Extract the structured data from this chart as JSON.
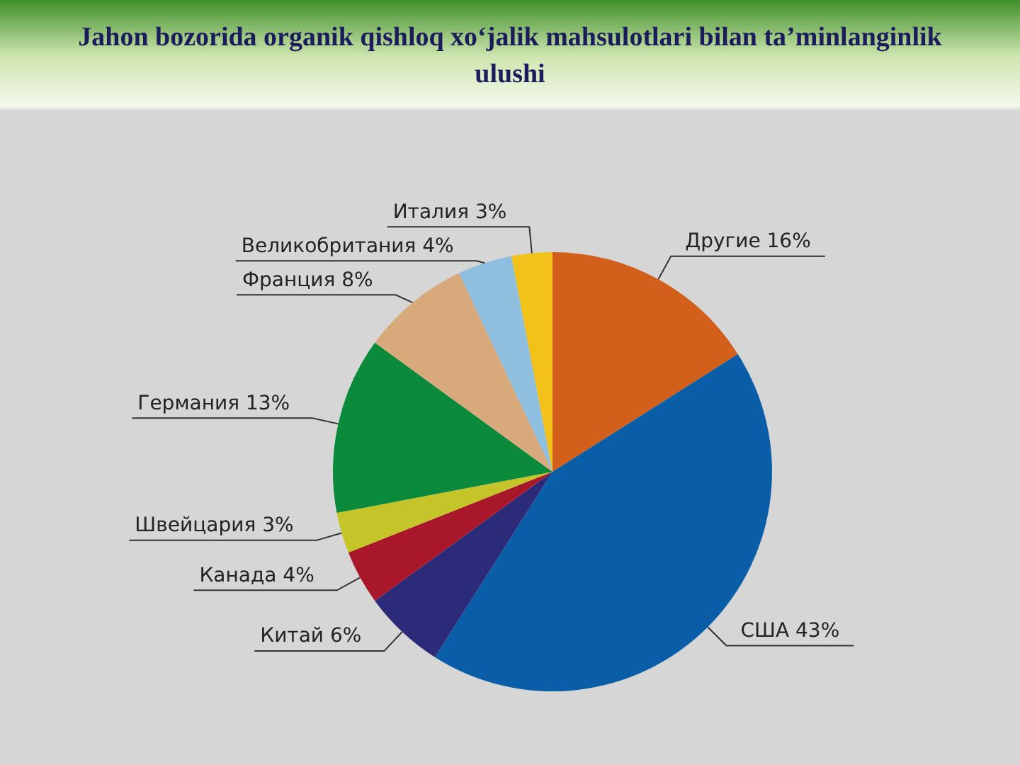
{
  "chart_data": {
    "type": "pie",
    "title": "Jahon bozorida organik qishloq xo‘jalik mahsulotlari bilan ta’minlanginlik ulushi",
    "categories": [
      "Другие",
      "США",
      "Китай",
      "Канада",
      "Швейцария",
      "Германия",
      "Франция",
      "Великобритания",
      "Италия"
    ],
    "values": [
      16,
      43,
      6,
      4,
      3,
      13,
      8,
      4,
      3
    ],
    "value_labels": [
      "16%",
      "43%",
      "6%",
      "4%",
      "3%",
      "13%",
      "8%",
      "4%",
      "3%"
    ],
    "colors": [
      "#d2601a",
      "#0a5ea8",
      "#2b2b7a",
      "#a8182a",
      "#c5c52a",
      "#0a8a3a",
      "#d8a97a",
      "#8fbfdf",
      "#f2c21a"
    ]
  }
}
